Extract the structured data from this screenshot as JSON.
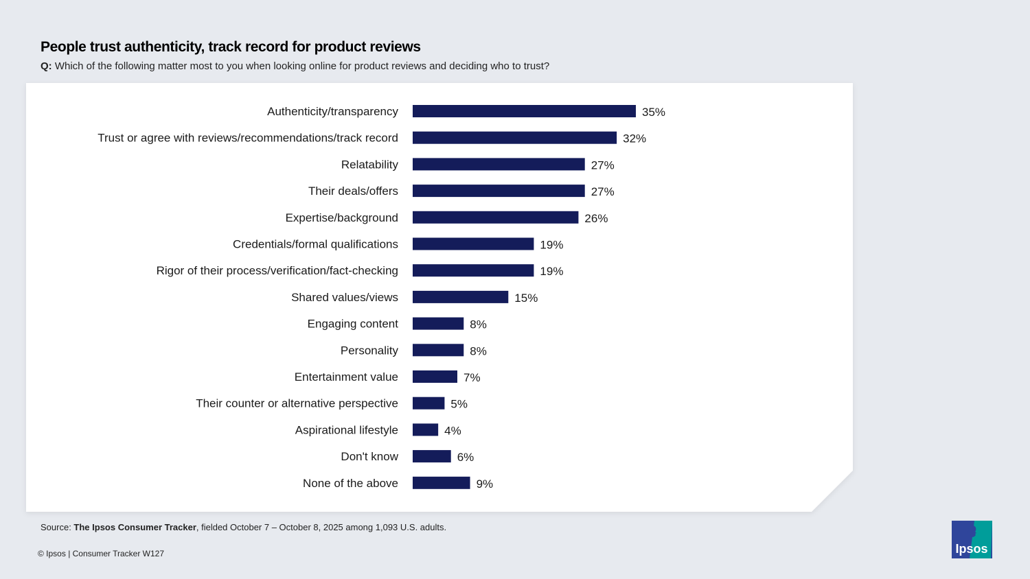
{
  "header": {
    "title": "People trust authenticity, track record for product reviews",
    "question_prefix": "Q:",
    "question": "Which of the following matter most to you when looking online for product reviews and deciding who to trust?"
  },
  "chart_data": {
    "type": "bar",
    "orientation": "horizontal",
    "categories": [
      "Authenticity/transparency",
      "Trust or agree with reviews/recommendations/track record",
      "Relatability",
      "Their deals/offers",
      "Expertise/background",
      "Credentials/formal qualifications",
      "Rigor of their process/verification/fact-checking",
      "Shared values/views",
      "Engaging content",
      "Personality",
      "Entertainment value",
      "Their counter or alternative perspective",
      "Aspirational lifestyle",
      "Don't know",
      "None of the above"
    ],
    "values": [
      35,
      32,
      27,
      27,
      26,
      19,
      19,
      15,
      8,
      8,
      7,
      5,
      4,
      6,
      9
    ],
    "labels": [
      "35%",
      "32%",
      "27%",
      "27%",
      "26%",
      "19%",
      "19%",
      "15%",
      "8%",
      "8%",
      "7%",
      "5%",
      "4%",
      "6%",
      "9%"
    ],
    "unit": "%",
    "bar_color": "#141c5a",
    "grid": false
  },
  "footer": {
    "source_prefix": "Source: ",
    "source_bold": "The Ipsos Consumer Tracker",
    "source_rest": ", fielded October 7 – October 8, 2025 among 1,093 U.S. adults.",
    "copyright": "© Ipsos | Consumer Tracker W127"
  },
  "logo": {
    "text": "Ipsos",
    "colors": [
      "#2f459b",
      "#009d9a"
    ]
  }
}
